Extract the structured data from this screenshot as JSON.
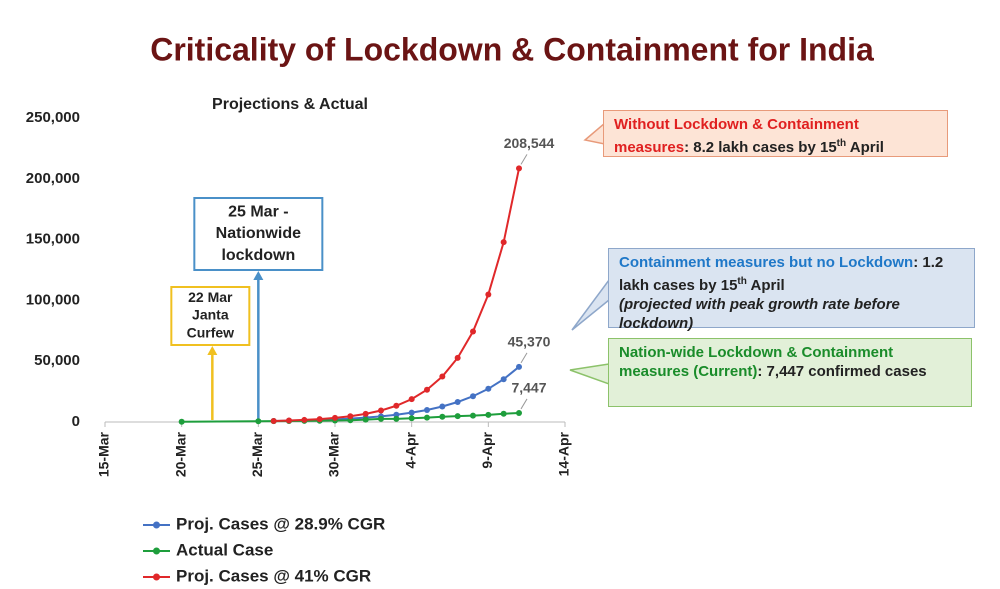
{
  "chart_data": {
    "type": "line",
    "title": "Criticality of Lockdown & Containment for India",
    "subtitle": "Projections & Actual",
    "xlim": [
      "15-Mar",
      "14-Apr"
    ],
    "xticks": [
      "15-Mar",
      "20-Mar",
      "25-Mar",
      "30-Mar",
      "4-Apr",
      "9-Apr",
      "14-Apr"
    ],
    "ylim": [
      0,
      250000
    ],
    "yticks": [
      {
        "value": 0,
        "label": "0"
      },
      {
        "value": 50000,
        "label": "50,000"
      },
      {
        "value": 100000,
        "label": "100,000"
      },
      {
        "value": 150000,
        "label": "150,000"
      },
      {
        "value": 200000,
        "label": "200,000"
      },
      {
        "value": 250000,
        "label": "250,000"
      }
    ],
    "grid": false,
    "legend": "bottom",
    "series": [
      {
        "name": "Proj. Cases @ 28.9% CGR",
        "color": "#4472c4",
        "x": [
          "26-Mar",
          "27-Mar",
          "28-Mar",
          "29-Mar",
          "30-Mar",
          "31-Mar",
          "1-Apr",
          "2-Apr",
          "3-Apr",
          "4-Apr",
          "5-Apr",
          "6-Apr",
          "7-Apr",
          "8-Apr",
          "9-Apr",
          "10-Apr",
          "11-Apr"
        ],
        "values": [
          781,
          1007,
          1298,
          1673,
          2156,
          2779,
          3583,
          4618,
          5953,
          7673,
          9891,
          12749,
          16434,
          21184,
          27306,
          35198,
          45370
        ],
        "value_labels": [
          null,
          null,
          null,
          null,
          null,
          null,
          null,
          null,
          null,
          null,
          null,
          null,
          null,
          null,
          null,
          null,
          "45,370"
        ]
      },
      {
        "name": "Actual Case",
        "color": "#1e9e3c",
        "x": [
          "20-Mar",
          "25-Mar",
          "26-Mar",
          "27-Mar",
          "28-Mar",
          "29-Mar",
          "30-Mar",
          "31-Mar",
          "1-Apr",
          "2-Apr",
          "3-Apr",
          "4-Apr",
          "5-Apr",
          "6-Apr",
          "7-Apr",
          "8-Apr",
          "9-Apr",
          "10-Apr",
          "11-Apr"
        ],
        "values": [
          223,
          606,
          694,
          834,
          918,
          1024,
          1251,
          1397,
          1998,
          2543,
          2567,
          3082,
          3588,
          4314,
          4789,
          5274,
          5865,
          6761,
          7447
        ],
        "value_labels": [
          null,
          null,
          null,
          null,
          null,
          null,
          null,
          null,
          null,
          null,
          null,
          null,
          null,
          null,
          null,
          null,
          null,
          null,
          "7,447"
        ]
      },
      {
        "name": "Proj. Cases @ 41% CGR",
        "color": "#e0282a",
        "x": [
          "26-Mar",
          "27-Mar",
          "28-Mar",
          "29-Mar",
          "30-Mar",
          "31-Mar",
          "1-Apr",
          "2-Apr",
          "3-Apr",
          "4-Apr",
          "5-Apr",
          "6-Apr",
          "7-Apr",
          "8-Apr",
          "9-Apr",
          "10-Apr",
          "11-Apr"
        ],
        "values": [
          854,
          1205,
          1699,
          2395,
          3377,
          4762,
          6714,
          9467,
          13349,
          18822,
          26539,
          37420,
          52762,
          74394,
          104896,
          147903,
          208544
        ],
        "value_labels": [
          null,
          null,
          null,
          null,
          null,
          null,
          null,
          null,
          null,
          null,
          null,
          null,
          null,
          null,
          null,
          null,
          "208,544"
        ]
      }
    ],
    "annotations": [
      {
        "x": "25-Mar",
        "lines": [
          "25 Mar -",
          "Nationwide",
          "lockdown"
        ],
        "color": "#4a90c8"
      },
      {
        "x": "22-Mar",
        "lines": [
          "22 Mar",
          "Janta",
          "Curfew"
        ],
        "color": "#f0c020"
      }
    ]
  },
  "callouts": [
    {
      "heading": "Without Lockdown & Containment measures",
      "text": ": 8.2 lakh cases by 15",
      "sup": "th",
      "tail": " April",
      "color": "#e02020",
      "fill": "#fde4d6",
      "border": "#e89a7a"
    },
    {
      "heading": "Containment measures but no Lockdown",
      "text": ": 1.2 lakh cases by 15",
      "sup": "th",
      "tail": " April",
      "note": "(projected with peak growth rate before lockdown)",
      "color": "#1f78c8",
      "fill": "#dae4f1",
      "border": "#8ea7ca"
    },
    {
      "heading": "Nation-wide Lockdown & Containment measures (Current)",
      "text": ": 7,447 confirmed cases",
      "color": "#1a8c2a",
      "fill": "#e2f0d8",
      "border": "#8cc26a"
    }
  ]
}
